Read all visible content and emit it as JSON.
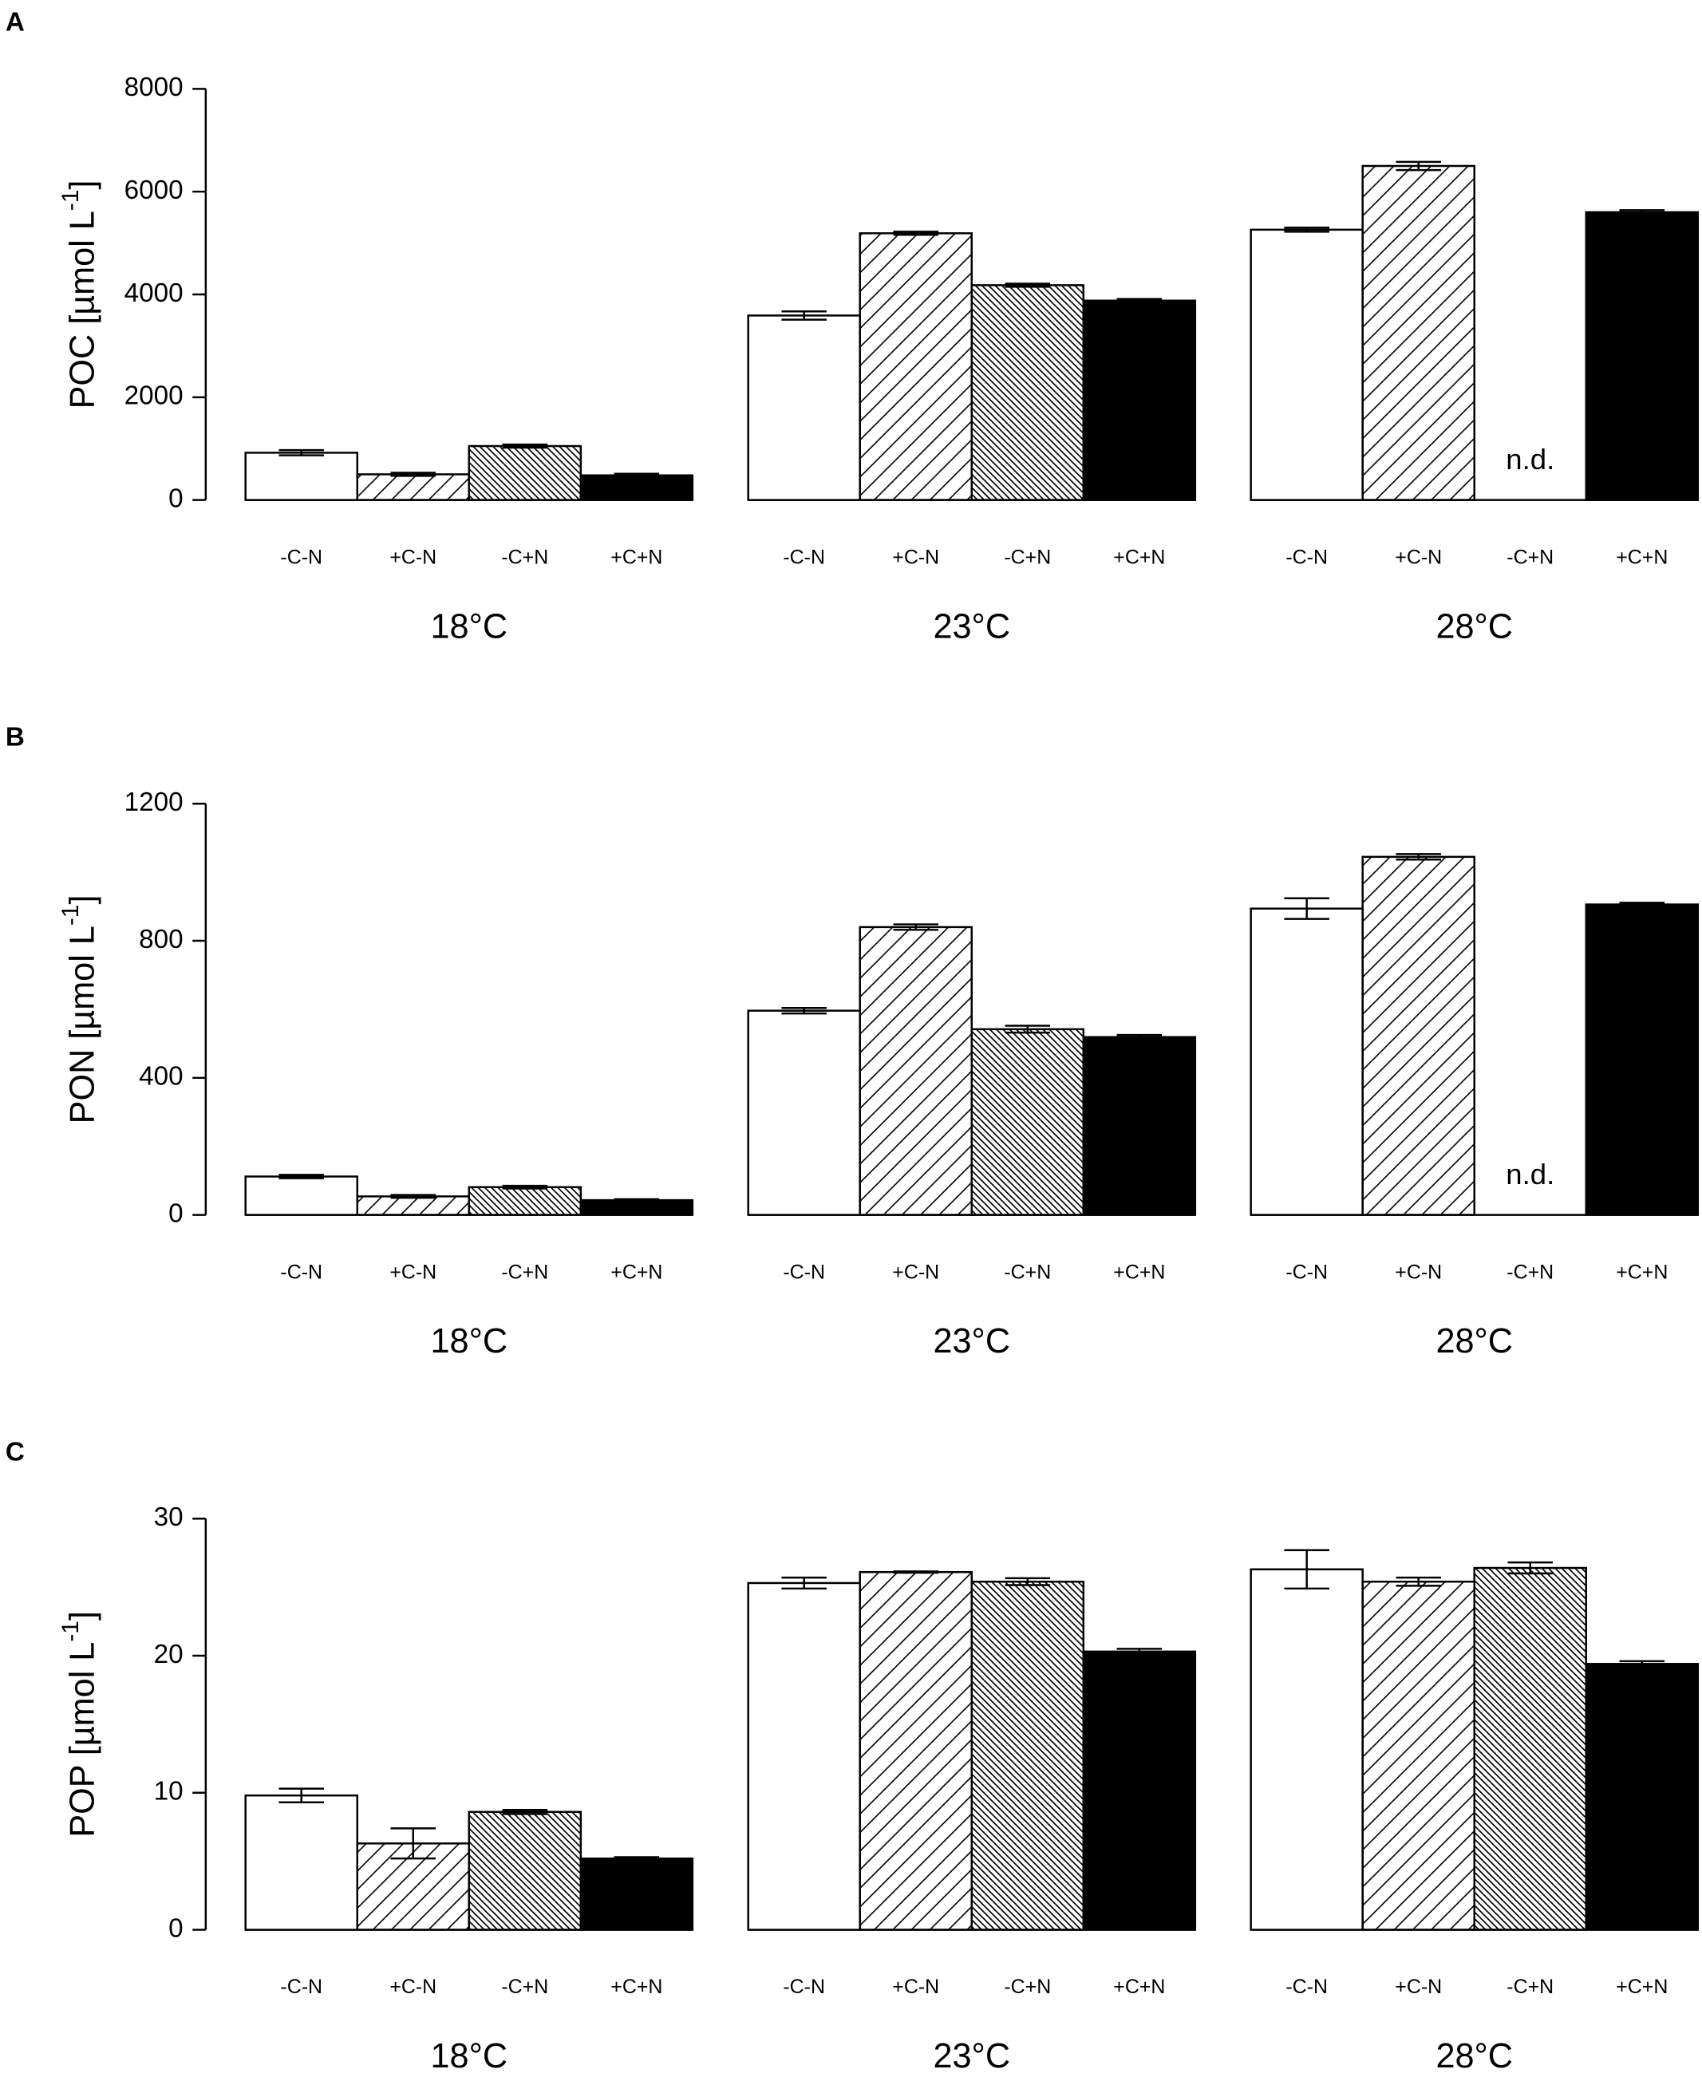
{
  "chart_data": [
    {
      "type": "bar",
      "panel": "A",
      "ylabel_parts": [
        "POC [µmol L",
        "-1",
        "]"
      ],
      "categories": [
        "18°C",
        "23°C",
        "28°C"
      ],
      "series": [
        {
          "name": "-C-N",
          "pattern": "white",
          "values": [
            920,
            3590,
            5260
          ],
          "errors": [
            50,
            80,
            40
          ]
        },
        {
          "name": "+C-N",
          "pattern": "hatch",
          "values": [
            500,
            5190,
            6500
          ],
          "errors": [
            30,
            30,
            80
          ]
        },
        {
          "name": "-C+N",
          "pattern": "dense-hatch",
          "values": [
            1050,
            4180,
            null
          ],
          "errors": [
            30,
            30,
            null
          ]
        },
        {
          "name": "+C+N",
          "pattern": "black",
          "values": [
            480,
            3880,
            5600
          ],
          "errors": [
            30,
            30,
            40
          ]
        }
      ],
      "annotations": [
        {
          "text": "n.d.",
          "series": 2,
          "category": 2
        }
      ],
      "ylim": [
        0,
        8000
      ],
      "yticks": [
        0,
        2000,
        4000,
        6000,
        8000
      ]
    },
    {
      "type": "bar",
      "panel": "B",
      "ylabel_parts": [
        "PON [µmol L",
        "-1",
        "]"
      ],
      "categories": [
        "18°C",
        "23°C",
        "28°C"
      ],
      "series": [
        {
          "name": "-C-N",
          "pattern": "white",
          "values": [
            112,
            596,
            894
          ],
          "errors": [
            5,
            8,
            30
          ]
        },
        {
          "name": "+C-N",
          "pattern": "hatch",
          "values": [
            54,
            840,
            1045
          ],
          "errors": [
            4,
            8,
            8
          ]
        },
        {
          "name": "-C+N",
          "pattern": "dense-hatch",
          "values": [
            81,
            542,
            null
          ],
          "errors": [
            4,
            10,
            null
          ]
        },
        {
          "name": "+C+N",
          "pattern": "black",
          "values": [
            43,
            519,
            906
          ],
          "errors": [
            3,
            6,
            5
          ]
        }
      ],
      "annotations": [
        {
          "text": "n.d.",
          "series": 2,
          "category": 2
        }
      ],
      "ylim": [
        0,
        1200
      ],
      "yticks": [
        0,
        400,
        800,
        1200
      ]
    },
    {
      "type": "bar",
      "panel": "C",
      "ylabel_parts": [
        "POP [µmol L",
        "-1",
        "]"
      ],
      "categories": [
        "18°C",
        "23°C",
        "28°C"
      ],
      "series": [
        {
          "name": "-C-N",
          "pattern": "white",
          "values": [
            9.8,
            25.3,
            26.3
          ],
          "errors": [
            0.5,
            0.4,
            1.4
          ]
        },
        {
          "name": "+C-N",
          "pattern": "hatch",
          "values": [
            6.3,
            26.1,
            25.4
          ],
          "errors": [
            1.1,
            0.05,
            0.3
          ]
        },
        {
          "name": "-C+N",
          "pattern": "dense-hatch",
          "values": [
            8.6,
            25.4,
            26.4
          ],
          "errors": [
            0.15,
            0.25,
            0.4
          ]
        },
        {
          "name": "+C+N",
          "pattern": "black",
          "values": [
            5.2,
            20.3,
            19.4
          ],
          "errors": [
            0.1,
            0.2,
            0.2
          ]
        }
      ],
      "annotations": [],
      "ylim": [
        0,
        30
      ],
      "yticks": [
        0,
        10,
        20,
        30
      ]
    }
  ]
}
